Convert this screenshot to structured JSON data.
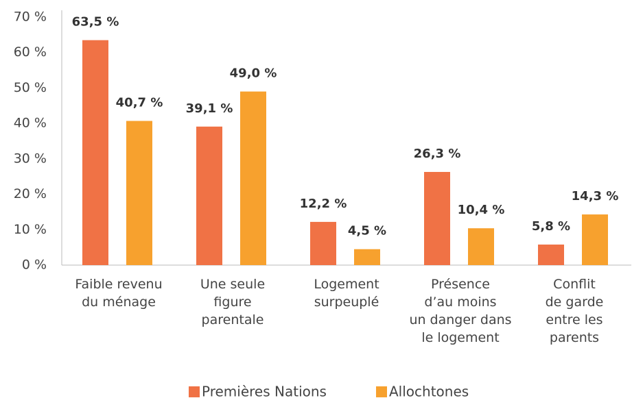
{
  "chart_data": {
    "type": "bar",
    "categories": [
      "Faible revenu\ndu ménage",
      "Une seule\nfigure\nparentale",
      "Logement\nsurpeuplé",
      "Présence\nd’au moins\nun danger dans\nle logement",
      "Conflit\nde garde\nentre les\nparents"
    ],
    "series": [
      {
        "name": "Premières Nations",
        "color": "#f07245",
        "values": [
          63.5,
          39.1,
          12.2,
          26.3,
          5.8
        ],
        "value_labels": [
          "63,5 %",
          "39,1 %",
          "12,2 %",
          "26,3 %",
          "5,8 %"
        ]
      },
      {
        "name": "Allochtones",
        "color": "#f7a12e",
        "values": [
          40.7,
          49.0,
          4.5,
          10.4,
          14.3
        ],
        "value_labels": [
          "40,7 %",
          "49,0 %",
          "4,5 %",
          "10,4 %",
          "14,3 %"
        ]
      }
    ],
    "ylim": [
      0,
      70
    ],
    "yticks": [
      {
        "value": 0,
        "label": "0 %"
      },
      {
        "value": 10,
        "label": "10 %"
      },
      {
        "value": 20,
        "label": "20 %"
      },
      {
        "value": 30,
        "label": "30 %"
      },
      {
        "value": 40,
        "label": "40 %"
      },
      {
        "value": 50,
        "label": "50 %"
      },
      {
        "value": 60,
        "label": "60 %"
      },
      {
        "value": 70,
        "label": "70 %"
      }
    ],
    "legend": "bottom"
  }
}
